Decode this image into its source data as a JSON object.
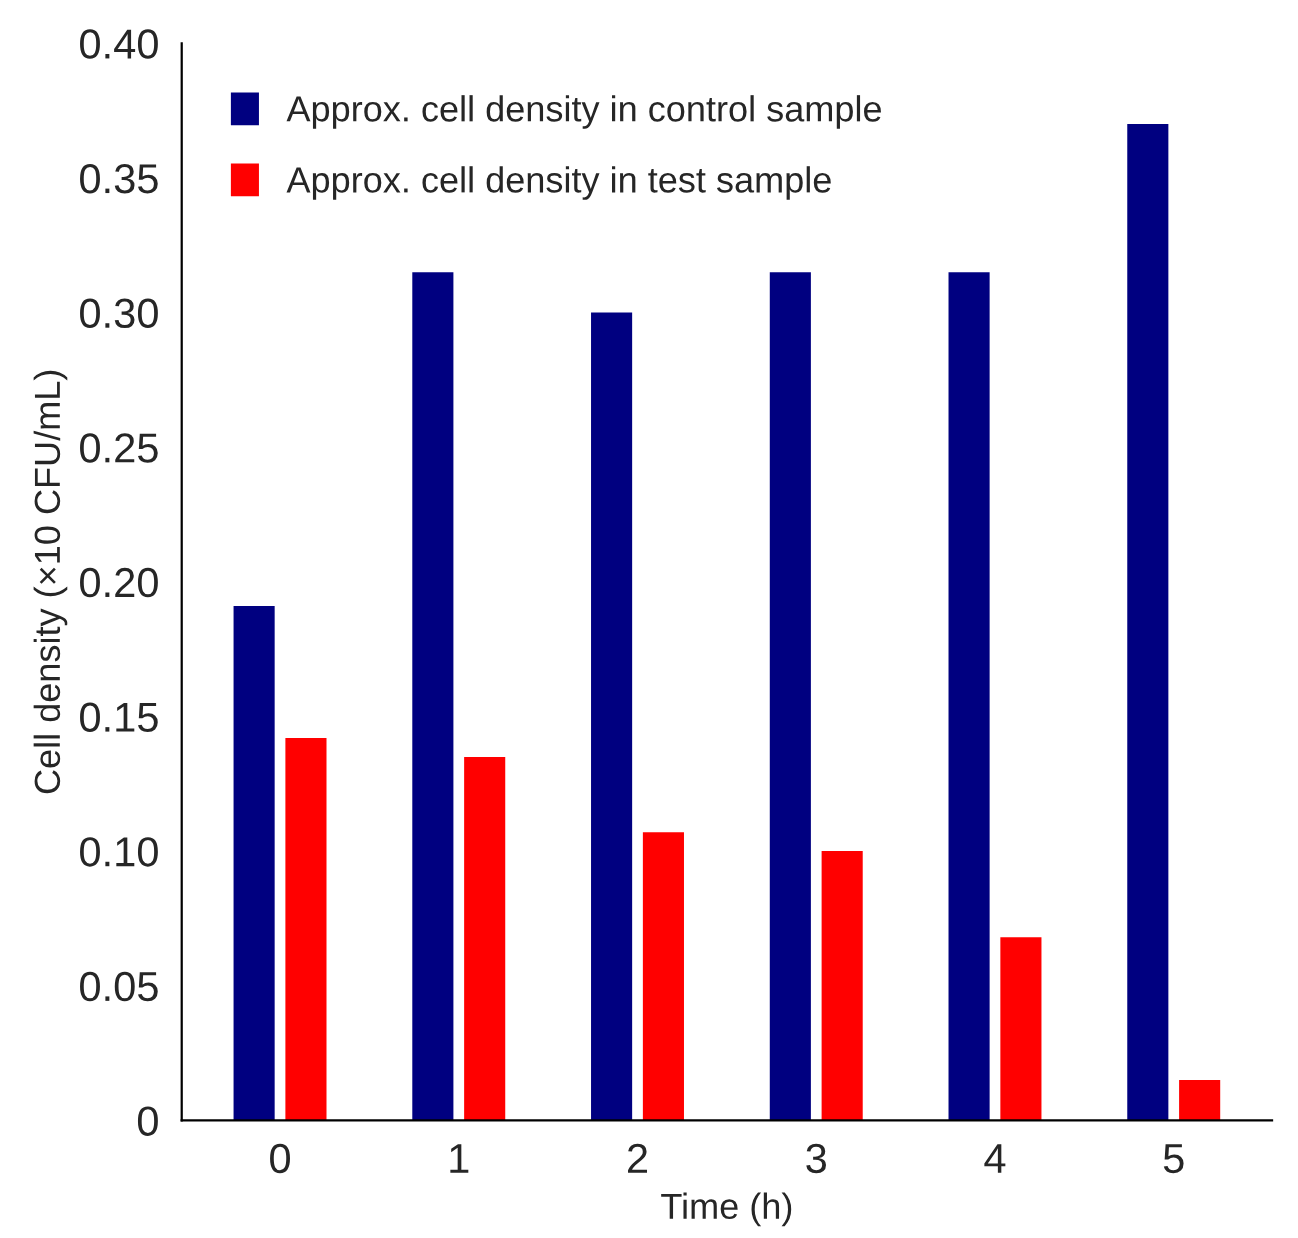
{
  "chart_data": {
    "type": "bar",
    "xlabel": "Time (h)",
    "ylabel": "Cell density (×10 CFU/mL)",
    "categories": [
      "0",
      "1",
      "2",
      "3",
      "4",
      "5"
    ],
    "series": [
      {
        "name": "Approx. cell density in control sample",
        "color": "#000080",
        "values": [
          0.191,
          0.315,
          0.3,
          0.315,
          0.315,
          0.37
        ]
      },
      {
        "name": "Approx. cell density in test sample",
        "color": "#ff0000",
        "values": [
          0.142,
          0.135,
          0.107,
          0.1,
          0.068,
          0.015
        ]
      }
    ],
    "ylim": [
      0,
      0.4
    ],
    "yticks": [
      {
        "value": 0,
        "label": "0"
      },
      {
        "value": 0.05,
        "label": "0.05"
      },
      {
        "value": 0.1,
        "label": "0.10"
      },
      {
        "value": 0.15,
        "label": "0.15"
      },
      {
        "value": 0.2,
        "label": "0.20"
      },
      {
        "value": 0.25,
        "label": "0.25"
      },
      {
        "value": 0.3,
        "label": "0.30"
      },
      {
        "value": 0.35,
        "label": "0.35"
      },
      {
        "value": 0.4,
        "label": "0.40"
      }
    ],
    "grid": false,
    "legend": "top left"
  }
}
